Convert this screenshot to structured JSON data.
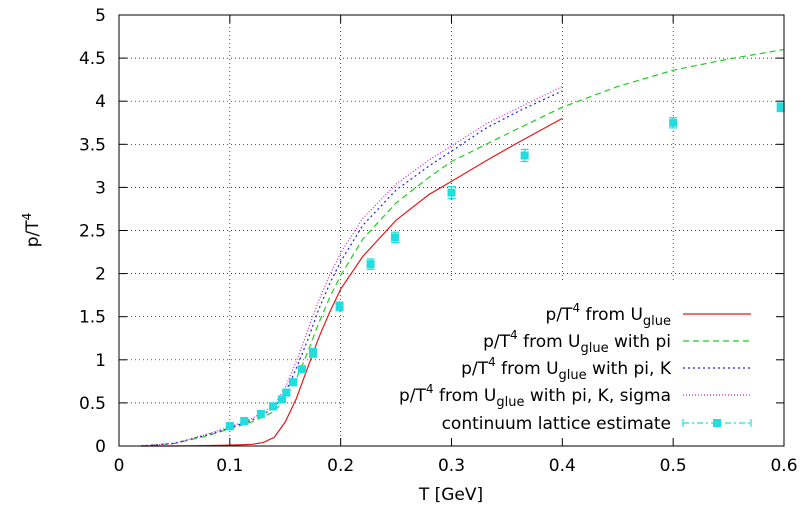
{
  "chart_data": {
    "type": "line",
    "xlabel": "T [GeV]",
    "ylabel": "p/T",
    "ylabel_sup": "4",
    "xlim": [
      0,
      0.6
    ],
    "ylim": [
      0,
      5
    ],
    "xticks": [
      "0",
      "0.1",
      "0.2",
      "0.3",
      "0.4",
      "0.5",
      "0.6"
    ],
    "yticks": [
      "0",
      "0.5",
      "1",
      "1.5",
      "2",
      "2.5",
      "3",
      "3.5",
      "4",
      "4.5",
      "5"
    ],
    "grid": true,
    "legend_position": "bottom-right",
    "series": [
      {
        "name": "p/T4 from Uglue",
        "label_parts": {
          "a": "p/T",
          "sup": "4",
          "b": " from U",
          "sub": "glue",
          "c": ""
        },
        "color": "#e41a1c",
        "dash": "solid",
        "x": [
          0.02,
          0.05,
          0.08,
          0.1,
          0.12,
          0.13,
          0.14,
          0.15,
          0.16,
          0.17,
          0.18,
          0.19,
          0.2,
          0.22,
          0.25,
          0.28,
          0.3,
          0.33,
          0.36,
          0.4
        ],
        "y": [
          0.0,
          0.0,
          0.005,
          0.01,
          0.02,
          0.04,
          0.1,
          0.28,
          0.55,
          0.9,
          1.25,
          1.55,
          1.82,
          2.2,
          2.62,
          2.92,
          3.07,
          3.3,
          3.52,
          3.8
        ]
      },
      {
        "name": "p/T4 from Uglue with pi",
        "label_parts": {
          "a": "p/T",
          "sup": "4",
          "b": " from U",
          "sub": "glue",
          "c": " with pi"
        },
        "color": "#22cc22",
        "dash": "6,4",
        "x": [
          0.02,
          0.05,
          0.08,
          0.1,
          0.12,
          0.14,
          0.15,
          0.16,
          0.17,
          0.18,
          0.19,
          0.2,
          0.22,
          0.25,
          0.28,
          0.3,
          0.35,
          0.4,
          0.45,
          0.5,
          0.55,
          0.6
        ],
        "y": [
          0.0,
          0.03,
          0.12,
          0.2,
          0.28,
          0.4,
          0.55,
          0.78,
          1.08,
          1.42,
          1.72,
          1.98,
          2.4,
          2.82,
          3.12,
          3.3,
          3.62,
          3.93,
          4.17,
          4.36,
          4.49,
          4.6
        ]
      },
      {
        "name": "p/T4 from Uglue with pi, K",
        "label_parts": {
          "a": "p/T",
          "sup": "4",
          "b": " from U",
          "sub": "glue",
          "c": " with pi, K"
        },
        "color": "#2222dd",
        "dash": "2,3",
        "x": [
          0.02,
          0.05,
          0.08,
          0.1,
          0.12,
          0.14,
          0.15,
          0.16,
          0.17,
          0.18,
          0.19,
          0.2,
          0.22,
          0.25,
          0.28,
          0.3,
          0.33,
          0.36,
          0.4
        ],
        "y": [
          0.0,
          0.03,
          0.13,
          0.21,
          0.3,
          0.44,
          0.62,
          0.9,
          1.22,
          1.58,
          1.88,
          2.14,
          2.56,
          2.97,
          3.25,
          3.42,
          3.68,
          3.88,
          4.12
        ]
      },
      {
        "name": "p/T4 from Uglue with pi, K, sigma",
        "label_parts": {
          "a": "p/T",
          "sup": "4",
          "b": " from U",
          "sub": "glue",
          "c": " with pi, K, sigma"
        },
        "color": "#cc22cc",
        "dash": "1,2",
        "x": [
          0.02,
          0.05,
          0.08,
          0.1,
          0.12,
          0.14,
          0.15,
          0.16,
          0.17,
          0.18,
          0.19,
          0.2,
          0.22,
          0.25,
          0.28,
          0.3,
          0.33,
          0.36,
          0.4
        ],
        "y": [
          0.0,
          0.03,
          0.14,
          0.22,
          0.32,
          0.47,
          0.68,
          0.98,
          1.33,
          1.68,
          1.98,
          2.24,
          2.64,
          3.04,
          3.32,
          3.48,
          3.73,
          3.92,
          4.17
        ]
      },
      {
        "name": "continuum lattice estimate",
        "label_parts": {
          "a": "continuum lattice estimate",
          "sup": "",
          "b": "",
          "sub": "",
          "c": ""
        },
        "color": "#22dddd",
        "marker": "square",
        "points": [
          {
            "x": 0.1,
            "y": 0.23,
            "err": 0.04
          },
          {
            "x": 0.113,
            "y": 0.29,
            "err": 0.04
          },
          {
            "x": 0.128,
            "y": 0.37,
            "err": 0.04
          },
          {
            "x": 0.139,
            "y": 0.46,
            "err": 0.04
          },
          {
            "x": 0.147,
            "y": 0.54,
            "err": 0.04
          },
          {
            "x": 0.151,
            "y": 0.62,
            "err": 0.04
          },
          {
            "x": 0.157,
            "y": 0.74,
            "err": 0.04
          },
          {
            "x": 0.165,
            "y": 0.89,
            "err": 0.04
          },
          {
            "x": 0.175,
            "y": 1.08,
            "err": 0.05
          },
          {
            "x": 0.199,
            "y": 1.62,
            "err": 0.05
          },
          {
            "x": 0.227,
            "y": 2.11,
            "err": 0.06
          },
          {
            "x": 0.249,
            "y": 2.42,
            "err": 0.06
          },
          {
            "x": 0.3,
            "y": 2.94,
            "err": 0.07
          },
          {
            "x": 0.366,
            "y": 3.37,
            "err": 0.07
          },
          {
            "x": 0.5,
            "y": 3.75,
            "err": 0.06
          },
          {
            "x": 0.597,
            "y": 3.93,
            "err": 0.05
          }
        ]
      }
    ]
  }
}
